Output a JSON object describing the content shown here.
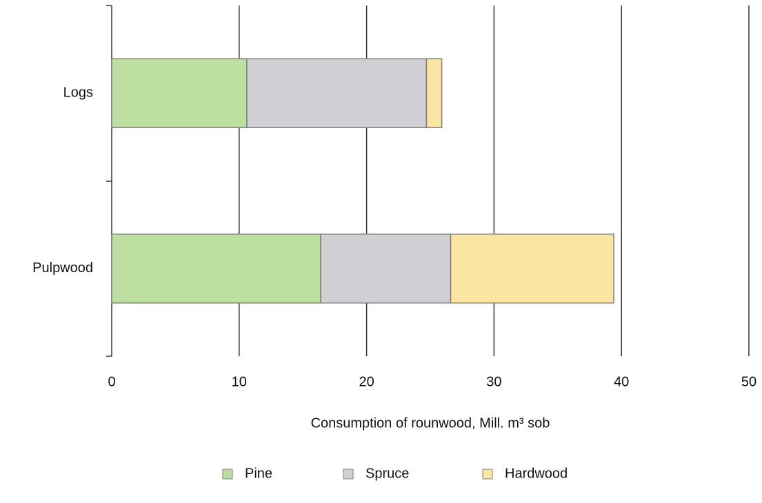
{
  "chart_data": {
    "type": "stacked_barh",
    "xlabel": "Consumption of rounwood, Mill. m³ sob",
    "categories": [
      "Logs",
      "Pulpwood"
    ],
    "series": [
      {
        "name": "Pine",
        "color": "#bddf9f",
        "values": [
          10.6,
          16.4
        ]
      },
      {
        "name": "Spruce",
        "color": "#d0cfd3",
        "values": [
          14.1,
          10.2
        ]
      },
      {
        "name": "Hardwood",
        "color": "#fae5a3",
        "values": [
          1.2,
          12.8
        ]
      }
    ],
    "xlim": [
      0,
      50
    ],
    "xticks": [
      0,
      10,
      20,
      30,
      40,
      50
    ],
    "grid": true,
    "legend": "bottom"
  }
}
